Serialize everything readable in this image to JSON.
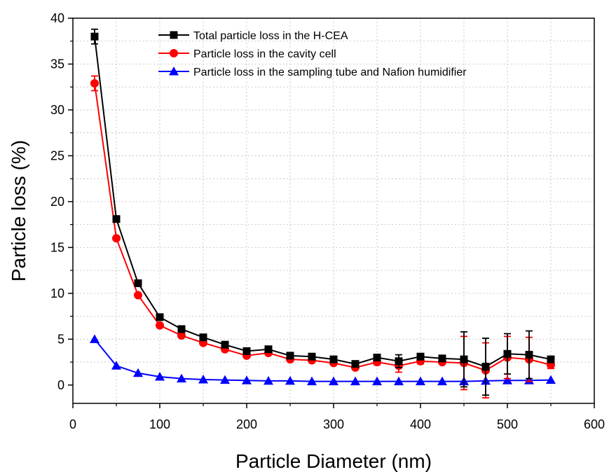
{
  "chart_data": {
    "type": "line",
    "title": "",
    "xlabel": "Particle Diameter (nm)",
    "ylabel": "Particle loss (%)",
    "xlim": [
      0,
      600
    ],
    "ylim": [
      -2,
      40
    ],
    "xticks": [
      0,
      100,
      200,
      300,
      400,
      500,
      600
    ],
    "yticks": [
      0,
      5,
      10,
      15,
      20,
      25,
      30,
      35,
      40
    ],
    "grid": true,
    "legend_position": "top-right",
    "series": [
      {
        "name": "Total particle loss in the H-CEA",
        "color": "#000000",
        "marker": "square",
        "x": [
          25,
          50,
          75,
          100,
          125,
          150,
          175,
          200,
          225,
          250,
          275,
          300,
          325,
          350,
          375,
          400,
          425,
          450,
          475,
          500,
          525,
          550
        ],
        "y": [
          38.0,
          18.1,
          11.1,
          7.4,
          6.1,
          5.2,
          4.4,
          3.7,
          3.9,
          3.2,
          3.1,
          2.8,
          2.3,
          3.0,
          2.6,
          3.1,
          2.9,
          2.8,
          2.0,
          3.4,
          3.3,
          2.8
        ],
        "err": [
          0.8,
          0,
          0,
          0,
          0,
          0,
          0,
          0,
          0,
          0,
          0,
          0,
          0,
          0,
          0.7,
          0,
          0,
          3.0,
          3.1,
          2.2,
          2.6,
          0
        ]
      },
      {
        "name": "Particle loss in the cavity cell",
        "color": "#ff0000",
        "marker": "circle",
        "x": [
          25,
          50,
          75,
          100,
          125,
          150,
          175,
          200,
          225,
          250,
          275,
          300,
          325,
          350,
          375,
          400,
          425,
          450,
          475,
          500,
          525,
          550
        ],
        "y": [
          32.9,
          16.0,
          9.8,
          6.5,
          5.4,
          4.6,
          3.9,
          3.2,
          3.5,
          2.8,
          2.7,
          2.4,
          1.9,
          2.5,
          2.1,
          2.6,
          2.5,
          2.4,
          1.6,
          3.0,
          2.8,
          2.2
        ],
        "err": [
          0.8,
          0,
          0,
          0,
          0,
          0,
          0,
          0,
          0,
          0,
          0,
          0,
          0,
          0.3,
          0.7,
          0.3,
          0,
          2.9,
          3.0,
          2.3,
          2.4,
          0.4
        ]
      },
      {
        "name": "Particle loss in the sampling tube and Nafion humidifier",
        "color": "#0000ff",
        "marker": "triangle",
        "x": [
          25,
          50,
          75,
          100,
          125,
          150,
          175,
          200,
          225,
          250,
          275,
          300,
          325,
          350,
          375,
          400,
          425,
          450,
          475,
          500,
          525,
          550
        ],
        "y": [
          5.0,
          2.1,
          1.3,
          0.9,
          0.7,
          0.6,
          0.55,
          0.5,
          0.45,
          0.45,
          0.4,
          0.4,
          0.4,
          0.4,
          0.4,
          0.4,
          0.4,
          0.4,
          0.45,
          0.5,
          0.5,
          0.55
        ]
      }
    ]
  }
}
